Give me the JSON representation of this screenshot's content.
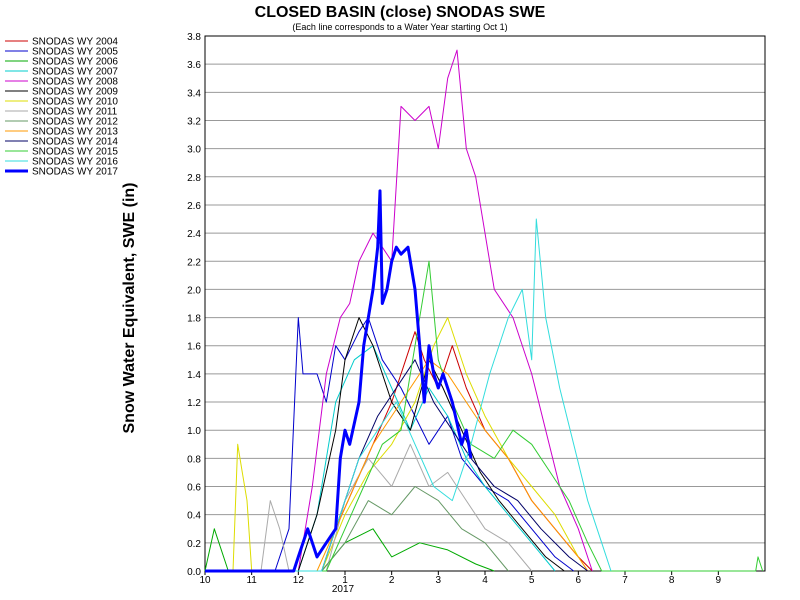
{
  "chart_data": {
    "type": "line",
    "title": "CLOSED BASIN (close) SNODAS SWE",
    "subtitle": "(Each line corresponds to a Water Year starting Oct 1)",
    "ylabel": "Snow Water Equivalent, SWE (in)",
    "xlabel": "",
    "ylim": [
      0,
      3.8
    ],
    "yticks": [
      "0.0",
      "0.2",
      "0.4",
      "0.6",
      "0.8",
      "1.0",
      "1.2",
      "1.4",
      "1.6",
      "1.8",
      "2.0",
      "2.2",
      "2.4",
      "2.6",
      "2.8",
      "3.0",
      "3.2",
      "3.4",
      "3.6",
      "3.8"
    ],
    "xlim": [
      0,
      12
    ],
    "xticks": [
      {
        "label": "10",
        "x": 0
      },
      {
        "label": "11",
        "x": 1
      },
      {
        "label": "12",
        "x": 2
      },
      {
        "label": "1",
        "x": 3
      },
      {
        "label": "2",
        "x": 4
      },
      {
        "label": "3",
        "x": 5
      },
      {
        "label": "4",
        "x": 6
      },
      {
        "label": "5",
        "x": 7
      },
      {
        "label": "6",
        "x": 8
      },
      {
        "label": "7",
        "x": 9
      },
      {
        "label": "8",
        "x": 10
      },
      {
        "label": "9",
        "x": 11
      }
    ],
    "year_label": "2017",
    "grid": true,
    "legend_position": "top-left",
    "series": [
      {
        "name": "SNODAS WY 2004",
        "color": "#cc0000",
        "width": 1,
        "points": [
          [
            0,
            0
          ],
          [
            2.5,
            0
          ],
          [
            2.8,
            0.3
          ],
          [
            3.2,
            0.6
          ],
          [
            3.6,
            0.9
          ],
          [
            4.0,
            1.2
          ],
          [
            4.3,
            1.5
          ],
          [
            4.5,
            1.7
          ],
          [
            4.7,
            1.5
          ],
          [
            5.0,
            1.3
          ],
          [
            5.3,
            1.6
          ],
          [
            5.6,
            1.3
          ],
          [
            6.0,
            1.0
          ],
          [
            6.5,
            0.8
          ],
          [
            7.0,
            0.5
          ],
          [
            7.5,
            0.3
          ],
          [
            8.0,
            0.1
          ],
          [
            8.3,
            0
          ]
        ]
      },
      {
        "name": "SNODAS WY 2005",
        "color": "#0000cc",
        "width": 1,
        "points": [
          [
            0,
            0
          ],
          [
            1.5,
            0
          ],
          [
            1.8,
            0.3
          ],
          [
            2.0,
            1.8
          ],
          [
            2.1,
            1.4
          ],
          [
            2.4,
            1.4
          ],
          [
            2.6,
            1.2
          ],
          [
            2.8,
            1.6
          ],
          [
            3.0,
            1.5
          ],
          [
            3.3,
            1.7
          ],
          [
            3.5,
            1.8
          ],
          [
            3.8,
            1.5
          ],
          [
            4.2,
            1.3
          ],
          [
            4.5,
            1.1
          ],
          [
            4.8,
            0.9
          ],
          [
            5.2,
            1.1
          ],
          [
            5.5,
            0.8
          ],
          [
            6.0,
            0.6
          ],
          [
            6.5,
            0.5
          ],
          [
            7.0,
            0.3
          ],
          [
            7.5,
            0.1
          ],
          [
            7.9,
            0
          ]
        ]
      },
      {
        "name": "SNODAS WY 2006",
        "color": "#00aa00",
        "width": 1,
        "points": [
          [
            0,
            0
          ],
          [
            0.2,
            0.3
          ],
          [
            0.5,
            0
          ],
          [
            2.5,
            0
          ],
          [
            3.0,
            0.2
          ],
          [
            3.6,
            0.3
          ],
          [
            4.0,
            0.1
          ],
          [
            4.6,
            0.2
          ],
          [
            5.2,
            0.15
          ],
          [
            5.8,
            0.05
          ],
          [
            6.2,
            0
          ]
        ]
      },
      {
        "name": "SNODAS WY 2007",
        "color": "#00cccc",
        "width": 1,
        "points": [
          [
            0,
            0
          ],
          [
            2.0,
            0
          ],
          [
            2.4,
            0.4
          ],
          [
            2.8,
            1.2
          ],
          [
            3.2,
            1.5
          ],
          [
            3.6,
            1.6
          ],
          [
            4.0,
            1.3
          ],
          [
            4.4,
            1.0
          ],
          [
            4.8,
            1.3
          ],
          [
            5.2,
            1.1
          ],
          [
            5.6,
            0.8
          ],
          [
            6.0,
            0.6
          ],
          [
            6.5,
            0.4
          ],
          [
            7.0,
            0.2
          ],
          [
            7.5,
            0
          ]
        ]
      },
      {
        "name": "SNODAS WY 2008",
        "color": "#cc00cc",
        "width": 1,
        "points": [
          [
            0,
            0
          ],
          [
            2.0,
            0
          ],
          [
            2.3,
            0.6
          ],
          [
            2.6,
            1.4
          ],
          [
            2.9,
            1.8
          ],
          [
            3.1,
            1.9
          ],
          [
            3.3,
            2.2
          ],
          [
            3.6,
            2.4
          ],
          [
            4.0,
            2.2
          ],
          [
            4.2,
            3.3
          ],
          [
            4.5,
            3.2
          ],
          [
            4.8,
            3.3
          ],
          [
            5.0,
            3.0
          ],
          [
            5.2,
            3.5
          ],
          [
            5.4,
            3.7
          ],
          [
            5.6,
            3.0
          ],
          [
            5.8,
            2.8
          ],
          [
            6.2,
            2.0
          ],
          [
            6.6,
            1.8
          ],
          [
            7.0,
            1.4
          ],
          [
            7.3,
            1.0
          ],
          [
            7.6,
            0.6
          ],
          [
            8.0,
            0.3
          ],
          [
            8.3,
            0
          ]
        ]
      },
      {
        "name": "SNODAS WY 2009",
        "color": "#000000",
        "width": 1,
        "points": [
          [
            0,
            0
          ],
          [
            2.0,
            0
          ],
          [
            2.4,
            0.4
          ],
          [
            2.8,
            1.0
          ],
          [
            3.0,
            1.5
          ],
          [
            3.3,
            1.8
          ],
          [
            3.6,
            1.6
          ],
          [
            4.0,
            1.2
          ],
          [
            4.4,
            1.0
          ],
          [
            4.8,
            1.5
          ],
          [
            5.1,
            1.3
          ],
          [
            5.5,
            1.0
          ],
          [
            5.9,
            0.7
          ],
          [
            6.3,
            0.5
          ],
          [
            6.8,
            0.3
          ],
          [
            7.3,
            0.1
          ],
          [
            7.7,
            0
          ]
        ]
      },
      {
        "name": "SNODAS WY 2010",
        "color": "#dddd00",
        "width": 1,
        "points": [
          [
            0,
            0
          ],
          [
            0.6,
            0
          ],
          [
            0.7,
            0.9
          ],
          [
            0.8,
            0.7
          ],
          [
            0.9,
            0.5
          ],
          [
            1.0,
            0
          ],
          [
            2.5,
            0
          ],
          [
            3.0,
            0.4
          ],
          [
            3.5,
            0.7
          ],
          [
            4.0,
            0.9
          ],
          [
            4.5,
            1.2
          ],
          [
            4.9,
            1.6
          ],
          [
            5.2,
            1.8
          ],
          [
            5.6,
            1.4
          ],
          [
            6.0,
            1.1
          ],
          [
            6.5,
            0.8
          ],
          [
            7.0,
            0.6
          ],
          [
            7.5,
            0.4
          ],
          [
            8.0,
            0.1
          ],
          [
            8.2,
            0
          ]
        ]
      },
      {
        "name": "SNODAS WY 2011",
        "color": "#aaaaaa",
        "width": 1,
        "points": [
          [
            0,
            0
          ],
          [
            1.2,
            0
          ],
          [
            1.4,
            0.5
          ],
          [
            1.6,
            0.3
          ],
          [
            1.8,
            0
          ],
          [
            2.6,
            0
          ],
          [
            3.0,
            0.5
          ],
          [
            3.5,
            0.8
          ],
          [
            4.0,
            0.6
          ],
          [
            4.4,
            0.9
          ],
          [
            4.8,
            0.6
          ],
          [
            5.2,
            0.7
          ],
          [
            5.6,
            0.5
          ],
          [
            6.0,
            0.3
          ],
          [
            6.5,
            0.2
          ],
          [
            7.0,
            0
          ]
        ]
      },
      {
        "name": "SNODAS WY 2012",
        "color": "#669966",
        "width": 1,
        "points": [
          [
            0,
            0
          ],
          [
            2.5,
            0
          ],
          [
            3.0,
            0.2
          ],
          [
            3.5,
            0.5
          ],
          [
            4.0,
            0.4
          ],
          [
            4.5,
            0.6
          ],
          [
            5.0,
            0.5
          ],
          [
            5.5,
            0.3
          ],
          [
            6.0,
            0.2
          ],
          [
            6.5,
            0
          ]
        ]
      },
      {
        "name": "SNODAS WY 2013",
        "color": "#ff9900",
        "width": 1,
        "points": [
          [
            0,
            0
          ],
          [
            2.4,
            0
          ],
          [
            2.8,
            0.3
          ],
          [
            3.2,
            0.6
          ],
          [
            3.6,
            0.9
          ],
          [
            4.0,
            1.1
          ],
          [
            4.4,
            1.3
          ],
          [
            4.8,
            1.5
          ],
          [
            5.2,
            1.4
          ],
          [
            5.6,
            1.2
          ],
          [
            6.0,
            1.0
          ],
          [
            6.5,
            0.8
          ],
          [
            7.0,
            0.5
          ],
          [
            7.5,
            0.3
          ],
          [
            8.0,
            0.1
          ],
          [
            8.2,
            0
          ]
        ]
      },
      {
        "name": "SNODAS WY 2014",
        "color": "#000066",
        "width": 1,
        "points": [
          [
            0,
            0
          ],
          [
            2.5,
            0
          ],
          [
            2.9,
            0.4
          ],
          [
            3.3,
            0.8
          ],
          [
            3.7,
            1.1
          ],
          [
            4.1,
            1.3
          ],
          [
            4.5,
            1.5
          ],
          [
            4.9,
            1.2
          ],
          [
            5.3,
            1.0
          ],
          [
            5.7,
            0.8
          ],
          [
            6.2,
            0.6
          ],
          [
            6.7,
            0.5
          ],
          [
            7.2,
            0.3
          ],
          [
            7.8,
            0.1
          ],
          [
            8.2,
            0
          ]
        ]
      },
      {
        "name": "SNODAS WY 2015",
        "color": "#33cc33",
        "width": 1,
        "points": [
          [
            0,
            0
          ],
          [
            2.6,
            0
          ],
          [
            3.0,
            0.3
          ],
          [
            3.4,
            0.6
          ],
          [
            3.8,
            0.9
          ],
          [
            4.2,
            1.0
          ],
          [
            4.6,
            1.8
          ],
          [
            4.8,
            2.2
          ],
          [
            5.0,
            1.5
          ],
          [
            5.3,
            1.2
          ],
          [
            5.7,
            0.9
          ],
          [
            6.2,
            0.8
          ],
          [
            6.6,
            1.0
          ],
          [
            7.0,
            0.9
          ],
          [
            7.4,
            0.7
          ],
          [
            7.8,
            0.5
          ],
          [
            8.2,
            0.2
          ],
          [
            8.5,
            0
          ],
          [
            11.8,
            0
          ],
          [
            11.85,
            0.1
          ],
          [
            11.95,
            0
          ]
        ]
      },
      {
        "name": "SNODAS WY 2016",
        "color": "#33dddd",
        "width": 1,
        "points": [
          [
            0,
            0
          ],
          [
            2.5,
            0
          ],
          [
            2.9,
            0.4
          ],
          [
            3.3,
            0.8
          ],
          [
            3.7,
            1.0
          ],
          [
            4.1,
            1.2
          ],
          [
            4.5,
            0.9
          ],
          [
            4.9,
            0.6
          ],
          [
            5.3,
            0.5
          ],
          [
            5.7,
            0.9
          ],
          [
            6.1,
            1.4
          ],
          [
            6.5,
            1.8
          ],
          [
            6.8,
            2.0
          ],
          [
            7.0,
            1.5
          ],
          [
            7.1,
            2.5
          ],
          [
            7.3,
            1.8
          ],
          [
            7.6,
            1.3
          ],
          [
            7.9,
            0.9
          ],
          [
            8.2,
            0.5
          ],
          [
            8.5,
            0.2
          ],
          [
            8.7,
            0
          ]
        ]
      },
      {
        "name": "SNODAS WY 2017",
        "color": "#0000ff",
        "width": 3,
        "points": [
          [
            0,
            0
          ],
          [
            1.9,
            0
          ],
          [
            2.0,
            0.1
          ],
          [
            2.2,
            0.3
          ],
          [
            2.4,
            0.1
          ],
          [
            2.6,
            0.2
          ],
          [
            2.8,
            0.3
          ],
          [
            2.9,
            0.8
          ],
          [
            3.0,
            1.0
          ],
          [
            3.1,
            0.9
          ],
          [
            3.3,
            1.2
          ],
          [
            3.4,
            1.6
          ],
          [
            3.6,
            2.0
          ],
          [
            3.7,
            2.3
          ],
          [
            3.75,
            2.7
          ],
          [
            3.8,
            1.9
          ],
          [
            3.9,
            2.0
          ],
          [
            4.0,
            2.2
          ],
          [
            4.1,
            2.3
          ],
          [
            4.2,
            2.25
          ],
          [
            4.35,
            2.3
          ],
          [
            4.5,
            2.0
          ],
          [
            4.6,
            1.6
          ],
          [
            4.7,
            1.2
          ],
          [
            4.8,
            1.6
          ],
          [
            4.9,
            1.4
          ],
          [
            5.0,
            1.3
          ],
          [
            5.1,
            1.4
          ],
          [
            5.3,
            1.2
          ],
          [
            5.5,
            0.9
          ],
          [
            5.6,
            1.0
          ],
          [
            5.7,
            0.8
          ]
        ]
      }
    ]
  }
}
